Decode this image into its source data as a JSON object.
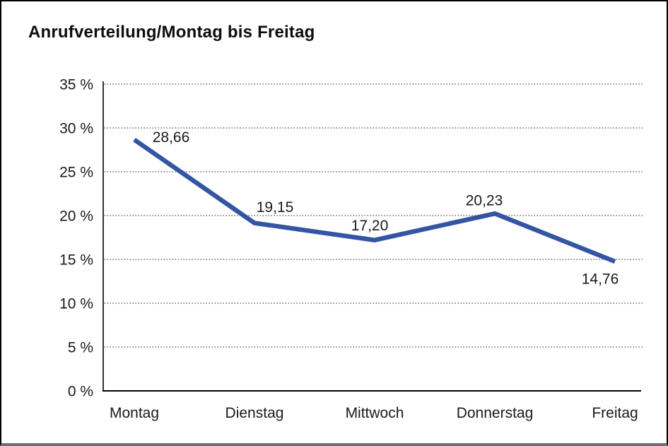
{
  "page": {
    "title": "Anrufverteilung/Montag bis Freitag"
  },
  "chart_data": {
    "type": "line",
    "title": "Anrufverteilung/Montag bis Freitag",
    "categories": [
      "Montag",
      "Dienstag",
      "Mittwoch",
      "Donnerstag",
      "Freitag"
    ],
    "series": [
      {
        "name": "Anrufverteilung",
        "values": [
          28.66,
          19.15,
          17.2,
          20.23,
          14.76
        ],
        "point_labels": [
          "28,66",
          "19,15",
          "17,20",
          "20,23",
          "14,76"
        ]
      }
    ],
    "xlabel": "",
    "ylabel": "",
    "ylim": [
      0,
      35
    ],
    "ytick_step": 5,
    "ytick_labels": [
      "0 %",
      "5 %",
      "10 %",
      "15 %",
      "20 %",
      "25 %",
      "30 %",
      "35 %"
    ],
    "grid": "horizontal-dotted",
    "legend": "none",
    "colors": {
      "line": "#3355A3",
      "text": "#1a1a1a",
      "grid": "#5f5f5f",
      "axis": "#000000"
    }
  }
}
